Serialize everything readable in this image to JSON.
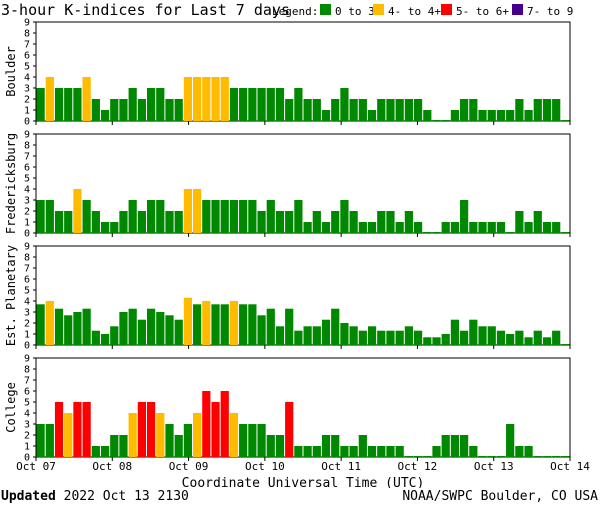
{
  "chart_data": {
    "type": "bar",
    "title": "3-hour K-indices for Last 7 days",
    "legend": {
      "label": "Legend:",
      "entries": [
        {
          "label": "0 to 3+",
          "color": "#008800"
        },
        {
          "label": "4- to 4+",
          "color": "#ffbb00"
        },
        {
          "label": "5- to 6+",
          "color": "#ff0000"
        },
        {
          "label": "7- to 9",
          "color": "#440088"
        }
      ]
    },
    "ylim": [
      0,
      9
    ],
    "yticks": [
      "0",
      "1",
      "2",
      "3",
      "4",
      "5",
      "6",
      "7",
      "8",
      "9"
    ],
    "xlabel": "Coordinate Universal Time (UTC)",
    "xtick_labels": [
      "Oct 07",
      "Oct 08",
      "Oct 09",
      "Oct 10",
      "Oct 11",
      "Oct 12",
      "Oct 13",
      "Oct 14"
    ],
    "series": [
      {
        "name": "Boulder",
        "values": [
          3,
          4,
          3,
          3,
          3,
          4,
          2,
          1,
          2,
          2,
          3,
          2,
          3,
          3,
          2,
          2,
          4,
          4,
          4,
          4,
          4,
          3,
          3,
          3,
          3,
          3,
          3,
          2,
          3,
          2,
          2,
          1,
          2,
          3,
          2,
          2,
          1,
          2,
          2,
          2,
          2,
          2,
          1,
          0,
          0,
          1,
          2,
          2,
          1,
          1,
          1,
          1,
          2,
          1,
          2,
          2,
          2,
          0
        ]
      },
      {
        "name": "Fredericksburg",
        "values": [
          3,
          3,
          2,
          2,
          4,
          3,
          2,
          1,
          1,
          2,
          3,
          2,
          3,
          3,
          2,
          2,
          4,
          4,
          3,
          3,
          3,
          3,
          3,
          3,
          2,
          3,
          2,
          2,
          3,
          1,
          2,
          1,
          2,
          3,
          2,
          1,
          1,
          2,
          2,
          1,
          2,
          1,
          0,
          0,
          1,
          1,
          3,
          1,
          1,
          1,
          1,
          0,
          2,
          1,
          2,
          1,
          1,
          0
        ]
      },
      {
        "name": "Est. Planetary",
        "values": [
          3.7,
          4,
          3.3,
          2.7,
          3,
          3.3,
          1.3,
          1,
          1.7,
          3,
          3.3,
          2.3,
          3.3,
          3,
          2.7,
          2.3,
          4.3,
          3.7,
          4,
          3.7,
          3.7,
          4,
          3.7,
          3.7,
          2.7,
          3.3,
          1.7,
          3.3,
          1.3,
          1.7,
          1.7,
          2.3,
          3.3,
          2,
          1.7,
          1.3,
          1.7,
          1.3,
          1.3,
          1.3,
          1.7,
          1.3,
          0.7,
          0.7,
          1,
          2.3,
          1.3,
          2.3,
          1.7,
          1.7,
          1.3,
          1,
          1.3,
          0.7,
          1.3,
          0.7,
          1.3,
          0
        ]
      },
      {
        "name": "College",
        "values": [
          3,
          3,
          5,
          4,
          5,
          5,
          1,
          1,
          2,
          2,
          4,
          5,
          5,
          4,
          3,
          2,
          3,
          4,
          6,
          5,
          6,
          4,
          3,
          3,
          3,
          2,
          2,
          5,
          1,
          1,
          1,
          2,
          2,
          1,
          1,
          2,
          1,
          1,
          1,
          1,
          0,
          0,
          0,
          1,
          2,
          2,
          2,
          1,
          0,
          0,
          0,
          3,
          1,
          1,
          0,
          0,
          0,
          0
        ]
      }
    ]
  },
  "footer": {
    "updated_label": "Updated",
    "updated_time": "2022 Oct 13 2130",
    "source": "NOAA/SWPC Boulder, CO USA"
  }
}
